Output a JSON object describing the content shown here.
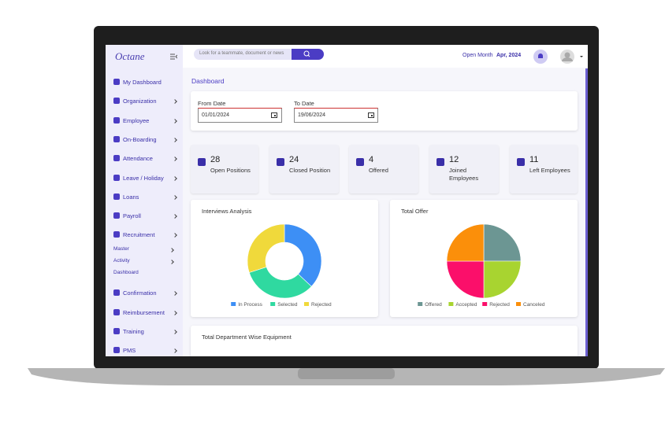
{
  "header": {
    "logo": "Octane",
    "search_placeholder": "Look for a teammate, document or news",
    "open_month_label": "Open Month",
    "open_month_value": "Apr, 2024"
  },
  "sidebar": {
    "menu": [
      {
        "label": "My Dashboard"
      },
      {
        "label": "Organization"
      },
      {
        "label": "Employee"
      },
      {
        "label": "On-Boarding"
      },
      {
        "label": "Attendance"
      },
      {
        "label": "Leave / Holiday"
      },
      {
        "label": "Loans"
      },
      {
        "label": "Payroll"
      },
      {
        "label": "Recruitment",
        "submenu": [
          "Master",
          "Activity",
          "Dashboard"
        ]
      },
      {
        "label": "Confirmation"
      },
      {
        "label": "Reimbursement"
      },
      {
        "label": "Training"
      },
      {
        "label": "PMS"
      }
    ]
  },
  "page": {
    "title": "Dashboard",
    "from_date": {
      "label": "From Date",
      "value": "01/01/2024"
    },
    "to_date": {
      "label": "To Date",
      "value": "19/06/2024"
    },
    "stats": [
      {
        "value": 28,
        "label": "Open Positions"
      },
      {
        "value": 24,
        "label": "Closed Position"
      },
      {
        "value": 4,
        "label": "Offered"
      },
      {
        "value": 12,
        "label": "Joined Employees"
      },
      {
        "value": 11,
        "label": "Left Employees"
      }
    ],
    "charts": [
      {
        "type": "donut",
        "title": "Interviews Analysis",
        "categories": [
          "In Process",
          "Selected",
          "Rejected"
        ],
        "values": [
          37,
          33,
          30
        ],
        "colors": [
          "#3d8ff5",
          "#2fd9a0",
          "#f0d93b"
        ]
      },
      {
        "type": "pie",
        "title": "Total Offer",
        "categories": [
          "Offered",
          "Accepted",
          "Rejected",
          "Canceled"
        ],
        "values": [
          25,
          25,
          25,
          25
        ],
        "colors": [
          "#6c9693",
          "#a8d430",
          "#fb0f6a",
          "#fb8f0a"
        ]
      }
    ],
    "equipment_title": "Total Department Wise Equipment"
  }
}
